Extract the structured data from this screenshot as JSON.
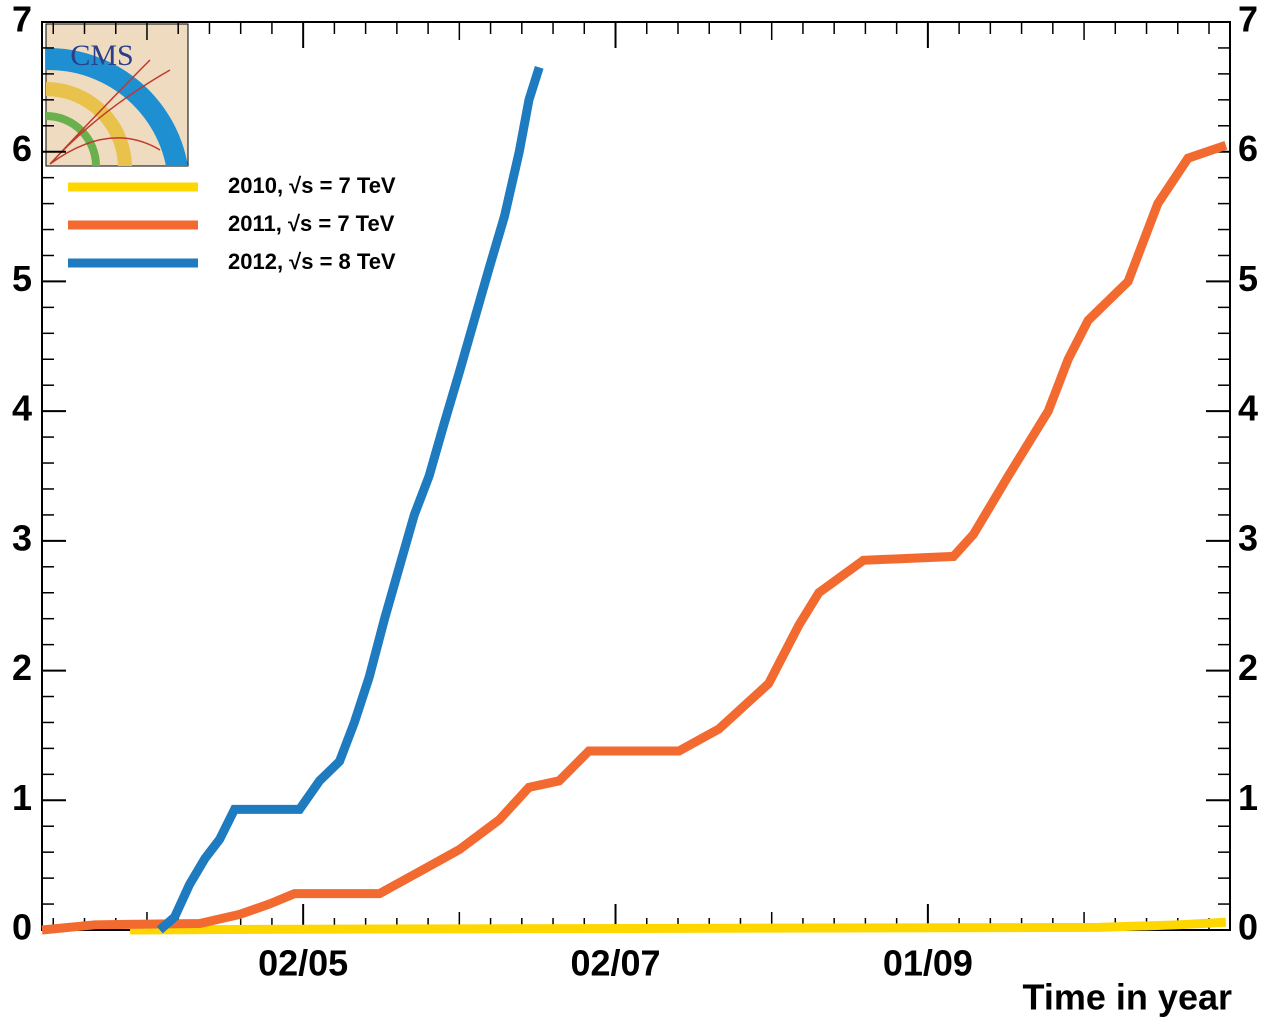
{
  "chart_data": {
    "type": "line",
    "logo_text": "CMS",
    "x_label": "Time in year",
    "xlim": [
      71,
      303
    ],
    "xticks": [
      {
        "value": 122,
        "label": "02/05"
      },
      {
        "value": 183,
        "label": "02/07"
      },
      {
        "value": 244,
        "label": "01/09"
      }
    ],
    "ylim": [
      0,
      7
    ],
    "yticks": [
      0,
      1,
      2,
      3,
      4,
      5,
      6,
      7
    ],
    "legend": "upper left",
    "series": [
      {
        "name": "2010, √s = 7 TeV",
        "color": "#FFD700",
        "x": [
          88.2,
          111.5,
          277.2,
          292.8,
          302.2
        ],
        "values": [
          0,
          0.005,
          0.02,
          0.04,
          0.06
        ]
      },
      {
        "name": "2011, √s = 7 TeV",
        "color": "#F26A2F",
        "x": [
          71.0,
          81.3,
          101.8,
          109.6,
          115.4,
          120.3,
          136.9,
          144.7,
          152.5,
          160.3,
          166.1,
          172.0,
          177.8,
          195.4,
          203.2,
          212.9,
          218.8,
          222.7,
          231.4,
          249.0,
          252.9,
          259.7,
          267.5,
          271.4,
          275.3,
          283.1,
          288.9,
          294.8,
          302.2
        ],
        "values": [
          0,
          0.04,
          0.05,
          0.12,
          0.2,
          0.28,
          0.28,
          0.45,
          0.62,
          0.85,
          1.1,
          1.15,
          1.38,
          1.38,
          1.55,
          1.9,
          2.35,
          2.6,
          2.85,
          2.88,
          3.05,
          3.5,
          4.0,
          4.4,
          4.7,
          5.0,
          5.6,
          5.95,
          6.05
        ]
      },
      {
        "name": "2012, √s = 8 TeV",
        "color": "#1E7BC0",
        "x": [
          94.0,
          96.9,
          99.8,
          102.8,
          105.7,
          108.6,
          121.3,
          125.2,
          129.1,
          132.0,
          134.9,
          137.9,
          140.8,
          143.7,
          146.6,
          149.5,
          152.5,
          155.4,
          158.3,
          161.3,
          164.2,
          166.1,
          168.1
        ],
        "values": [
          0,
          0.1,
          0.35,
          0.55,
          0.7,
          0.93,
          0.93,
          1.15,
          1.3,
          1.6,
          1.95,
          2.4,
          2.8,
          3.2,
          3.5,
          3.9,
          4.3,
          4.7,
          5.1,
          5.5,
          6.0,
          6.4,
          6.65
        ]
      }
    ]
  }
}
